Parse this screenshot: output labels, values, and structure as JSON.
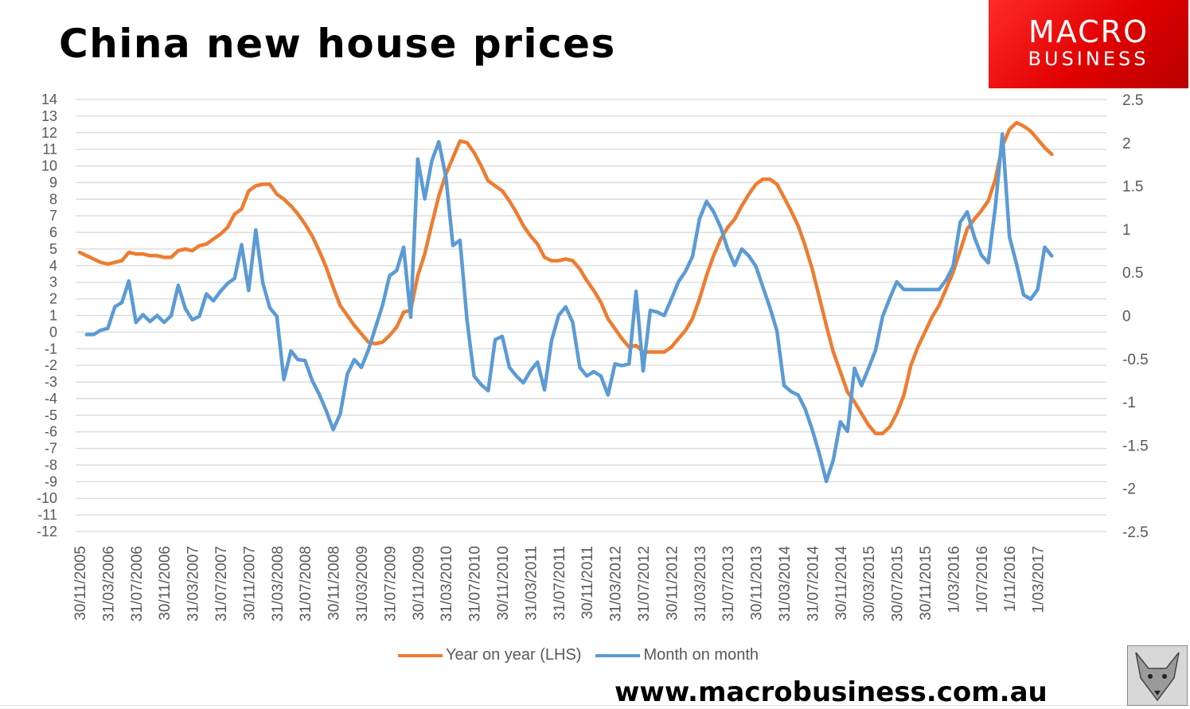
{
  "title": "China new house prices",
  "logo": {
    "line1": "MACRO",
    "line2": "BUSINESS"
  },
  "url": "www.macrobusiness.com.au",
  "colors": {
    "yoy": "#ED7D31",
    "mom": "#5B9BD5",
    "grid": "#D9D9D9",
    "axis_text": "#595959",
    "logo_red": "#E60000"
  },
  "chart_data": {
    "type": "line",
    "title": "China new house prices",
    "grid": true,
    "legend_position": "bottom",
    "left_axis": {
      "ylim": [
        -12,
        14
      ],
      "ticks": [
        "14",
        "13",
        "12",
        "11",
        "10",
        "9",
        "8",
        "7",
        "6",
        "5",
        "4",
        "3",
        "2",
        "1",
        "0",
        "-1",
        "-2",
        "-3",
        "-4",
        "-5",
        "-6",
        "-7",
        "-8",
        "-9",
        "-10",
        "-11",
        "-12"
      ]
    },
    "right_axis": {
      "ylim": [
        -2.5,
        2.5
      ],
      "ticks": [
        "2.5",
        "2",
        "1.5",
        "1",
        "0.5",
        "0",
        "-0.5",
        "-1",
        "-1.5",
        "-2",
        "-2.5"
      ]
    },
    "x_start": "30/11/2005",
    "x_interval": "monthly",
    "x_tick_labels": [
      "30/11/2005",
      "31/03/2006",
      "31/07/2006",
      "30/11/2006",
      "31/03/2007",
      "31/07/2007",
      "30/11/2007",
      "31/03/2008",
      "31/07/2008",
      "30/11/2008",
      "31/03/2009",
      "31/07/2009",
      "30/11/2009",
      "31/03/2010",
      "31/07/2010",
      "30/11/2010",
      "31/03/2011",
      "31/07/2011",
      "30/11/2011",
      "31/03/2012",
      "31/07/2012",
      "30/11/2012",
      "31/03/2013",
      "31/07/2013",
      "30/11/2013",
      "31/03/2014",
      "31/07/2014",
      "30/11/2014",
      "30/03/2015",
      "30/07/2015",
      "30/11/2015",
      "1/03/2016",
      "1/07/2016",
      "1/11/2016",
      "1/03/2017"
    ],
    "series": [
      {
        "name": "Year on year (LHS)",
        "axis": "left",
        "color": "#ED7D31",
        "values": [
          4.8,
          4.6,
          4.4,
          4.2,
          4.1,
          4.2,
          4.3,
          4.8,
          4.7,
          4.7,
          4.6,
          4.6,
          4.5,
          4.5,
          4.9,
          5.0,
          4.9,
          5.2,
          5.3,
          5.6,
          5.9,
          6.3,
          7.1,
          7.4,
          8.5,
          8.8,
          8.9,
          8.9,
          8.3,
          8.0,
          7.6,
          7.1,
          6.5,
          5.8,
          4.9,
          3.9,
          2.7,
          1.6,
          1.0,
          0.4,
          -0.1,
          -0.6,
          -0.7,
          -0.6,
          -0.2,
          0.3,
          1.2,
          1.3,
          3.4,
          4.7,
          6.5,
          8.2,
          9.5,
          10.5,
          11.5,
          11.4,
          10.8,
          10.0,
          9.1,
          8.8,
          8.5,
          7.9,
          7.2,
          6.4,
          5.8,
          5.3,
          4.5,
          4.3,
          4.3,
          4.4,
          4.3,
          3.8,
          3.1,
          2.5,
          1.8,
          0.8,
          0.2,
          -0.4,
          -0.9,
          -0.8,
          -1.2,
          -1.2,
          -1.2,
          -1.2,
          -0.9,
          -0.4,
          0.1,
          0.8,
          2.0,
          3.4,
          4.6,
          5.6,
          6.3,
          6.8,
          7.6,
          8.3,
          8.9,
          9.2,
          9.2,
          8.9,
          8.1,
          7.3,
          6.4,
          5.2,
          3.8,
          2.1,
          0.4,
          -1.2,
          -2.4,
          -3.6,
          -4.2,
          -4.9,
          -5.6,
          -6.1,
          -6.1,
          -5.7,
          -4.9,
          -3.8,
          -2.0,
          -0.9,
          0.0,
          0.9,
          1.6,
          2.6,
          3.6,
          4.9,
          6.2,
          6.8,
          7.3,
          7.9,
          9.2,
          11.2,
          12.2,
          12.6,
          12.4,
          12.1,
          11.6,
          11.1,
          10.7
        ]
      },
      {
        "name": "Month on month",
        "axis": "right",
        "color": "#5B9BD5",
        "values": [
          null,
          -0.22,
          -0.22,
          -0.17,
          -0.15,
          0.1,
          0.15,
          0.4,
          -0.08,
          0.01,
          -0.07,
          0.0,
          -0.08,
          0.0,
          0.35,
          0.08,
          -0.05,
          -0.01,
          0.25,
          0.17,
          0.28,
          0.37,
          0.43,
          0.82,
          0.29,
          0.99,
          0.38,
          0.09,
          -0.01,
          -0.74,
          -0.41,
          -0.51,
          -0.52,
          -0.75,
          -0.91,
          -1.1,
          -1.32,
          -1.14,
          -0.68,
          -0.51,
          -0.6,
          -0.4,
          -0.14,
          0.12,
          0.46,
          0.52,
          0.79,
          -0.02,
          1.81,
          1.35,
          1.79,
          2.01,
          1.6,
          0.81,
          0.87,
          -0.06,
          -0.7,
          -0.8,
          -0.87,
          -0.28,
          -0.24,
          -0.6,
          -0.7,
          -0.78,
          -0.64,
          -0.54,
          -0.86,
          -0.29,
          0.0,
          0.1,
          -0.08,
          -0.6,
          -0.7,
          -0.65,
          -0.7,
          -0.92,
          -0.56,
          -0.58,
          -0.56,
          0.28,
          -0.64,
          0.06,
          0.04,
          0.0,
          0.19,
          0.39,
          0.51,
          0.68,
          1.12,
          1.32,
          1.2,
          1.02,
          0.77,
          0.58,
          0.77,
          0.69,
          0.57,
          0.33,
          0.09,
          -0.18,
          -0.81,
          -0.88,
          -0.92,
          -1.08,
          -1.32,
          -1.6,
          -1.92,
          -1.67,
          -1.23,
          -1.34,
          -0.61,
          -0.81,
          -0.61,
          -0.4,
          -0.01,
          0.2,
          0.39,
          0.3,
          0.3,
          0.3,
          0.3,
          0.3,
          0.3,
          0.41,
          0.57,
          1.08,
          1.2,
          0.91,
          0.7,
          0.61,
          1.26,
          2.1,
          0.91,
          0.6,
          0.24,
          0.19,
          0.3,
          0.79,
          0.69
        ]
      }
    ]
  }
}
